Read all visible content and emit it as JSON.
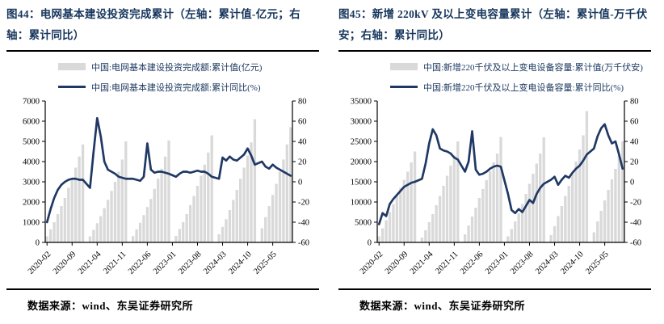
{
  "page": {
    "background": "#ffffff"
  },
  "categories": [
    "2020-02",
    "2020-03",
    "2020-04",
    "2020-05",
    "2020-06",
    "2020-07",
    "2020-08",
    "2020-09",
    "2020-10",
    "2020-11",
    "2020-12",
    "2021-01",
    "2021-02",
    "2021-03",
    "2021-04",
    "2021-05",
    "2021-06",
    "2021-07",
    "2021-08",
    "2021-09",
    "2021-10",
    "2021-11",
    "2021-12",
    "2022-01",
    "2022-02",
    "2022-03",
    "2022-04",
    "2022-05",
    "2022-06",
    "2022-07",
    "2022-08",
    "2022-09",
    "2022-10",
    "2022-11",
    "2022-12",
    "2023-01",
    "2023-02",
    "2023-03",
    "2023-04",
    "2023-05",
    "2023-06",
    "2023-07",
    "2023-08",
    "2023-09",
    "2023-10",
    "2023-11",
    "2023-12",
    "2024-01",
    "2024-02",
    "2024-03",
    "2024-04",
    "2024-05",
    "2024-06",
    "2024-07",
    "2024-08",
    "2024-09",
    "2024-10",
    "2024-11",
    "2024-12",
    "2025-01",
    "2025-02",
    "2025-03",
    "2025-04",
    "2025-05",
    "2025-06",
    "2025-07",
    "2025-08",
    "2025-09",
    "2025-10"
  ],
  "chart_data": [
    {
      "type": "bar+line",
      "figure_no": "图44",
      "title": "图44：电网基本建设投资完成累计（左轴：累计值-亿元；右轴：累计同比）",
      "xlabel": "",
      "ylabel_left": "累计值(亿元)",
      "ylabel_right": "累计同比(%)",
      "grid": false,
      "legend_position": "top",
      "left_axis": {
        "min": 0,
        "max": 7000,
        "step": 1000
      },
      "right_axis": {
        "min": -60,
        "max": 80,
        "step": 20
      },
      "x_tick_labels": [
        "2020-02",
        "2020-09",
        "2021-04",
        "2021-11",
        "2022-06",
        "2023-01",
        "2023-08",
        "2024-03",
        "2024-10",
        "2025-05"
      ],
      "x_tick_indices": [
        0,
        7,
        14,
        21,
        28,
        35,
        42,
        49,
        56,
        63
      ],
      "series": [
        {
          "name": "中国:电网基本建设投资完成额:累计值(亿元)",
          "type": "bar",
          "axis": "left",
          "color": "#d9d9d9",
          "values": [
            300,
            650,
            1000,
            1400,
            1800,
            2200,
            2700,
            3200,
            3700,
            4250,
            4850,
            null,
            300,
            620,
            950,
            1300,
            1700,
            2100,
            2550,
            3000,
            3500,
            4100,
            5000,
            null,
            310,
            640,
            970,
            1350,
            1750,
            2150,
            2650,
            3150,
            3650,
            4250,
            5050,
            null,
            320,
            660,
            1000,
            1400,
            1850,
            2300,
            2800,
            3300,
            3850,
            4450,
            5300,
            null,
            400,
            770,
            1150,
            1600,
            2100,
            2600,
            3150,
            3700,
            4300,
            4950,
            6100,
            null,
            700,
            1250,
            1800,
            2350,
            2900,
            3500,
            4100,
            4850,
            5700
          ]
        },
        {
          "name": "中国:电网基本建设投资完成额:累计同比(%)",
          "type": "line",
          "axis": "right",
          "color": "#1f3864",
          "values": [
            -40,
            -27,
            -16,
            -8,
            -3,
            0,
            2,
            3,
            3,
            2,
            2,
            null,
            -6,
            30,
            63,
            45,
            20,
            12,
            10,
            8,
            5,
            4,
            3,
            null,
            3,
            2,
            1,
            5,
            38,
            12,
            9,
            10,
            10,
            9,
            8,
            null,
            5,
            8,
            10,
            10,
            9,
            10,
            11,
            10,
            10,
            8,
            5,
            null,
            3,
            24,
            21,
            25,
            22,
            21,
            24,
            27,
            33,
            26,
            17,
            null,
            20,
            15,
            13,
            17,
            14,
            12,
            10,
            8,
            6
          ]
        }
      ],
      "source": "数据来源：wind、东吴证券研究所"
    },
    {
      "type": "bar+line",
      "figure_no": "图45",
      "title": "图45：新增 220kV 及以上变电容量累计（左轴：累计值-万千伏安；右轴：累计同比）",
      "xlabel": "",
      "ylabel_left": "累计值(万千伏安)",
      "ylabel_right": "累计同比(%)",
      "grid": false,
      "legend_position": "top",
      "left_axis": {
        "min": 0,
        "max": 35000,
        "step": 5000
      },
      "right_axis": {
        "min": -60,
        "max": 80,
        "step": 20
      },
      "x_tick_labels": [
        "2020-02",
        "2020-09",
        "2021-04",
        "2021-11",
        "2022-06",
        "2023-01",
        "2023-08",
        "2024-03",
        "2024-10",
        "2025-05"
      ],
      "x_tick_indices": [
        0,
        7,
        14,
        21,
        28,
        35,
        42,
        49,
        56,
        63
      ],
      "series": [
        {
          "name": "中国:新增220千伏及以上变电设备容量:累计值(万千伏安)",
          "type": "bar",
          "axis": "left",
          "color": "#d9d9d9",
          "values": [
            1500,
            3500,
            5500,
            7500,
            9500,
            11500,
            13500,
            15500,
            17500,
            19800,
            22500,
            null,
            1200,
            3000,
            5000,
            7000,
            9200,
            11500,
            14000,
            16500,
            19000,
            21500,
            25000,
            null,
            2000,
            4200,
            6400,
            8600,
            11000,
            13200,
            15400,
            17600,
            19800,
            22000,
            26100,
            null,
            1500,
            3300,
            5200,
            7200,
            9500,
            12000,
            14500,
            17000,
            19500,
            22000,
            26000,
            null,
            1800,
            4000,
            6500,
            9000,
            11500,
            14000,
            17000,
            20000,
            23000,
            26500,
            32500,
            null,
            2500,
            5200,
            7800,
            10400,
            13000,
            15600,
            18200,
            21500,
            25000
          ]
        },
        {
          "name": "中国:新增220千伏及以上变电设备容量:累计同比(%)",
          "type": "line",
          "axis": "right",
          "color": "#1f3864",
          "values": [
            -42,
            -31,
            -34,
            -22,
            -17,
            -13,
            -9,
            -5,
            -3,
            -1,
            0,
            null,
            3,
            18,
            38,
            52,
            46,
            33,
            31,
            30,
            28,
            24,
            22,
            null,
            10,
            20,
            50,
            12,
            7,
            8,
            10,
            13,
            15,
            16,
            15,
            null,
            -12,
            -28,
            -31,
            -27,
            -30,
            -24,
            -18,
            -21,
            -12,
            -6,
            -2,
            null,
            2,
            5,
            -3,
            2,
            6,
            4,
            9,
            13,
            16,
            21,
            27,
            null,
            33,
            45,
            53,
            57,
            46,
            38,
            40,
            27,
            13
          ]
        }
      ],
      "source": "数据来源：wind、东吴证券研究所"
    }
  ]
}
